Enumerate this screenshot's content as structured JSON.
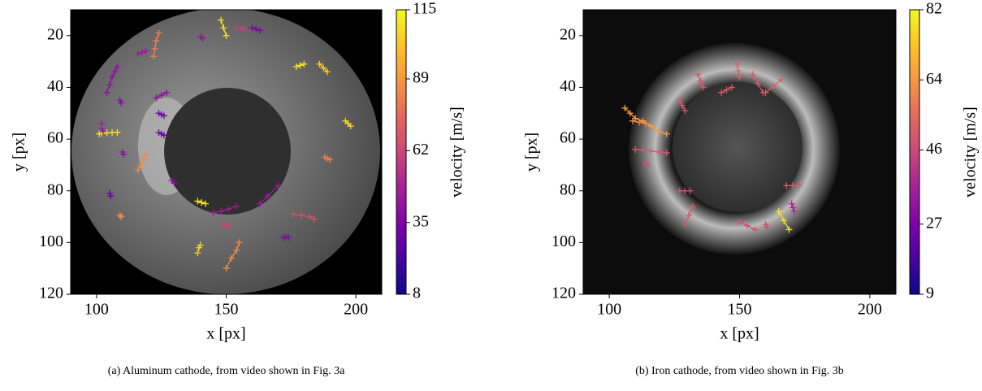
{
  "chart_data": [
    {
      "type": "trajectory",
      "xlabel": "x [px]",
      "ylabel": "y [px]",
      "colorbar_label": "velocity [m/s]",
      "caption": "(a) Aluminum cathode, from video shown in Fig. 3a",
      "cmap": "plasma",
      "xlim": [
        90,
        210
      ],
      "xticks": [
        100,
        150,
        200
      ],
      "ylim": [
        120,
        10
      ],
      "yticks": [
        20,
        40,
        60,
        80,
        100,
        120
      ],
      "clim": [
        8,
        115
      ],
      "cticks": [
        8,
        35,
        62,
        89,
        115
      ],
      "tracks": [
        {
          "x": [
            101,
            102,
            104,
            106,
            108
          ],
          "y": [
            58,
            57.8,
            57.6,
            57.5,
            57.4
          ],
          "velocity": 110
        },
        {
          "x": [
            104,
            105,
            106,
            107,
            108
          ],
          "y": [
            42,
            39,
            36,
            34,
            32
          ],
          "velocity": 40
        },
        {
          "x": [
            102,
            102,
            102.5
          ],
          "y": [
            54,
            56,
            57
          ],
          "velocity": 45
        },
        {
          "x": [
            116,
            117,
            118,
            119
          ],
          "y": [
            72,
            70,
            68,
            66
          ],
          "velocity": 85
        },
        {
          "x": [
            122,
            122.5,
            123,
            124
          ],
          "y": [
            28,
            25,
            22,
            19
          ],
          "velocity": 82
        },
        {
          "x": [
            148,
            149,
            150
          ],
          "y": [
            14,
            17,
            20
          ],
          "velocity": 110
        },
        {
          "x": [
            150,
            152,
            154,
            155
          ],
          "y": [
            110,
            106,
            103,
            100
          ],
          "velocity": 85
        },
        {
          "x": [
            139,
            139.5,
            140
          ],
          "y": [
            104,
            102,
            101
          ],
          "velocity": 105
        },
        {
          "x": [
            163,
            166,
            170
          ],
          "y": [
            85,
            82,
            78
          ],
          "velocity": 45
        },
        {
          "x": [
            176,
            179,
            182,
            184
          ],
          "y": [
            89,
            89.5,
            90,
            91
          ],
          "velocity": 65
        },
        {
          "x": [
            177,
            178.5,
            180
          ],
          "y": [
            32,
            31.5,
            31
          ],
          "velocity": 110
        },
        {
          "x": [
            186,
            187.5,
            189
          ],
          "y": [
            31,
            32.5,
            34
          ],
          "velocity": 105
        },
        {
          "x": [
            188,
            189,
            190
          ],
          "y": [
            67,
            67.5,
            68
          ],
          "velocity": 80
        },
        {
          "x": [
            196,
            197,
            198
          ],
          "y": [
            53,
            54,
            55
          ],
          "velocity": 105
        },
        {
          "x": [
            154,
            155.5,
            157
          ],
          "y": [
            17,
            17,
            17.5
          ],
          "velocity": 60
        },
        {
          "x": [
            160,
            161.5,
            163
          ],
          "y": [
            17,
            17.5,
            18
          ],
          "velocity": 35
        },
        {
          "x": [
            123,
            125,
            127
          ],
          "y": [
            44,
            43,
            42
          ],
          "velocity": 40
        },
        {
          "x": [
            124,
            125,
            126
          ],
          "y": [
            50,
            50.5,
            51
          ],
          "velocity": 30
        },
        {
          "x": [
            124,
            125,
            126
          ],
          "y": [
            57.5,
            58,
            58.5
          ],
          "velocity": 30
        },
        {
          "x": [
            105,
            105.5
          ],
          "y": [
            81,
            82
          ],
          "velocity": 30
        },
        {
          "x": [
            109,
            109.5
          ],
          "y": [
            89.5,
            90
          ],
          "velocity": 85
        },
        {
          "x": [
            145,
            148,
            151,
            154
          ],
          "y": [
            88.5,
            88,
            87,
            86
          ],
          "velocity": 45
        },
        {
          "x": [
            149,
            150,
            151
          ],
          "y": [
            93,
            93.5,
            94
          ],
          "velocity": 60
        },
        {
          "x": [
            139,
            140.5,
            142
          ],
          "y": [
            84,
            84.5,
            85
          ],
          "velocity": 110
        },
        {
          "x": [
            129,
            130
          ],
          "y": [
            76,
            77
          ],
          "velocity": 40
        },
        {
          "x": [
            116,
            117.5,
            119
          ],
          "y": [
            27,
            26.5,
            26
          ],
          "velocity": 45
        },
        {
          "x": [
            172,
            173,
            174
          ],
          "y": [
            98,
            98,
            98
          ],
          "velocity": 35
        },
        {
          "x": [
            110,
            110.5
          ],
          "y": [
            65,
            66
          ],
          "velocity": 40
        },
        {
          "x": [
            109,
            109.5
          ],
          "y": [
            45,
            46
          ],
          "velocity": 38
        },
        {
          "x": [
            140,
            141
          ],
          "y": [
            20.5,
            21
          ],
          "velocity": 42
        }
      ]
    },
    {
      "type": "trajectory",
      "xlabel": "x [px]",
      "ylabel": "y [px]",
      "colorbar_label": "velocity [m/s]",
      "caption": "(b) Iron cathode, from video shown in Fig. 3b",
      "cmap": "plasma",
      "xlim": [
        90,
        210
      ],
      "xticks": [
        100,
        150,
        200
      ],
      "ylim": [
        120,
        10
      ],
      "yticks": [
        20,
        40,
        60,
        80,
        100,
        120
      ],
      "clim": [
        9,
        82
      ],
      "cticks": [
        9,
        27,
        46,
        64,
        82
      ],
      "tracks": [
        {
          "x": [
            106,
            108,
            110,
            113,
            116,
            119,
            122
          ],
          "y": [
            48,
            50,
            52,
            53,
            55,
            57,
            58
          ],
          "velocity": 65
        },
        {
          "x": [
            109,
            111.5,
            114
          ],
          "y": [
            53,
            53.5,
            54
          ],
          "velocity": 62
        },
        {
          "x": [
            110,
            113,
            116,
            119,
            122
          ],
          "y": [
            64,
            64.3,
            64.6,
            65,
            65.3
          ],
          "velocity": 50
        },
        {
          "x": [
            114,
            114.5
          ],
          "y": [
            69,
            70
          ],
          "velocity": 48
        },
        {
          "x": [
            127,
            128,
            129
          ],
          "y": [
            45,
            47,
            49
          ],
          "velocity": 50
        },
        {
          "x": [
            134,
            135,
            136
          ],
          "y": [
            35,
            37.5,
            40
          ],
          "velocity": 50
        },
        {
          "x": [
            149,
            149.5,
            150
          ],
          "y": [
            31,
            33.5,
            36
          ],
          "velocity": 52
        },
        {
          "x": [
            155,
            157,
            159
          ],
          "y": [
            35,
            38.5,
            42
          ],
          "velocity": 50
        },
        {
          "x": [
            160,
            163,
            166
          ],
          "y": [
            42,
            39.5,
            37
          ],
          "velocity": 52
        },
        {
          "x": [
            129,
            130.5,
            132
          ],
          "y": [
            93,
            89.5,
            86
          ],
          "velocity": 50
        },
        {
          "x": [
            127,
            129,
            131
          ],
          "y": [
            80,
            80,
            80
          ],
          "velocity": 48
        },
        {
          "x": [
            150,
            153,
            156
          ],
          "y": [
            92,
            93.5,
            95
          ],
          "velocity": 48
        },
        {
          "x": [
            160,
            160.5
          ],
          "y": [
            93,
            94
          ],
          "velocity": 48
        },
        {
          "x": [
            165,
            167,
            169
          ],
          "y": [
            88,
            91.5,
            95
          ],
          "velocity": 78
        },
        {
          "x": [
            168,
            170.5,
            173
          ],
          "y": [
            78,
            78,
            78
          ],
          "velocity": 52
        },
        {
          "x": [
            170,
            170.5,
            171
          ],
          "y": [
            85,
            86.5,
            88
          ],
          "velocity": 38
        },
        {
          "x": [
            143,
            145,
            147
          ],
          "y": [
            42,
            41,
            40
          ],
          "velocity": 50
        }
      ]
    }
  ]
}
